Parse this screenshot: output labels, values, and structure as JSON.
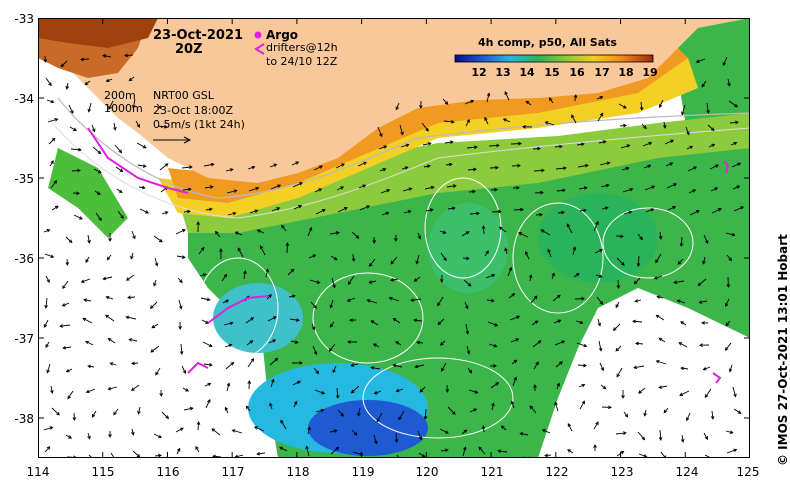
{
  "map": {
    "title_date": "23-Oct-2021",
    "title_time": "20Z",
    "lon_ticks": [
      "114",
      "115",
      "116",
      "117",
      "118",
      "119",
      "120",
      "121",
      "122",
      "123",
      "124",
      "125"
    ],
    "lat_ticks": [
      "-33",
      "-34",
      "-35",
      "-36",
      "-37",
      "-38"
    ],
    "lon_range": [
      114,
      125
    ],
    "lat_range": [
      -38.5,
      -33
    ],
    "land_color": "#f9c89a",
    "argo_color": "#e020e0",
    "drifter_color": "#e020e0"
  },
  "legend": {
    "argo": "Argo",
    "drifters_line1": "drifters@12h",
    "drifters_line2": "to 24/10 12Z",
    "depth_200": "200m",
    "depth_1000": "1000m",
    "current_source": "NRT00 GSL",
    "current_time": "23-Oct 18:00Z",
    "current_scale": "0.5m/s (1kt 24h)"
  },
  "colorbar": {
    "title": "4h comp, p50, All Sats",
    "ticks": [
      "12",
      "13",
      "14",
      "15",
      "16",
      "17",
      "18",
      "19"
    ],
    "min": 11.5,
    "max": 19.5
  },
  "credit": "© IMOS 27-Oct-2021 13:01 Hobart"
}
